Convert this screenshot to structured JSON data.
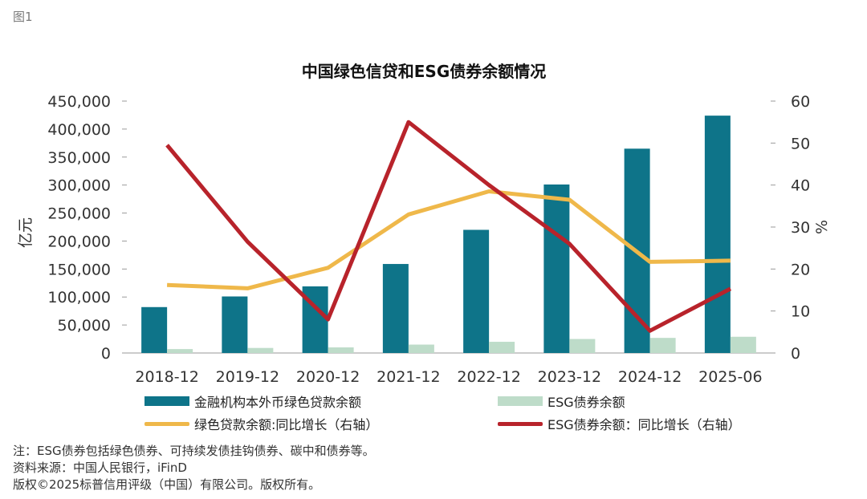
{
  "figure_label": "图1",
  "chart_data": {
    "type": "bar",
    "title": "中国绿色信贷和ESG债券余额情况",
    "categories": [
      "2018-12",
      "2019-12",
      "2020-12",
      "2021-12",
      "2022-12",
      "2023-12",
      "2024-12",
      "2025-06"
    ],
    "ylabel_left": "亿元",
    "ylabel_right": "%",
    "ylim_left": [
      0,
      450000
    ],
    "ylim_right": [
      0,
      60
    ],
    "yticks_left": [
      "0",
      "50,000",
      "100,000",
      "150,000",
      "200,000",
      "250,000",
      "300,000",
      "350,000",
      "400,000",
      "450,000"
    ],
    "yticks_right": [
      "0",
      "10",
      "20",
      "30",
      "40",
      "50",
      "60"
    ],
    "grid": false,
    "legend_position": "bottom",
    "series": [
      {
        "name": "金融机构本外币绿色贷款余额",
        "kind": "bar",
        "axis": "left",
        "color": "#0e7489",
        "values": [
          82000,
          101000,
          119000,
          159000,
          220000,
          301000,
          365000,
          424000
        ]
      },
      {
        "name": "ESG债券余额",
        "kind": "bar",
        "axis": "left",
        "color": "#bedcc9",
        "values": [
          7000,
          9000,
          10000,
          15000,
          20000,
          25000,
          27000,
          29000
        ]
      },
      {
        "name": "绿色贷款余额:同比增长（右轴）",
        "kind": "line",
        "axis": "right",
        "color": "#efb84a",
        "values": [
          16.2,
          15.4,
          20.3,
          33.0,
          38.5,
          36.5,
          21.7,
          22.0
        ]
      },
      {
        "name": "ESG债券余额：同比增长（右轴）",
        "kind": "line",
        "axis": "right",
        "color": "#b8232b",
        "values": [
          49.5,
          26.5,
          8.0,
          55.0,
          40.0,
          26.0,
          5.3,
          15.3
        ]
      }
    ]
  },
  "footer": {
    "note": "注：ESG债券包括绿色债券、可持续发债挂钩债券、碳中和债券等。",
    "source": "资料来源：中国人民银行，iFinD",
    "copyright": "版权©2025标普信用评级（中国）有限公司。版权所有。"
  }
}
